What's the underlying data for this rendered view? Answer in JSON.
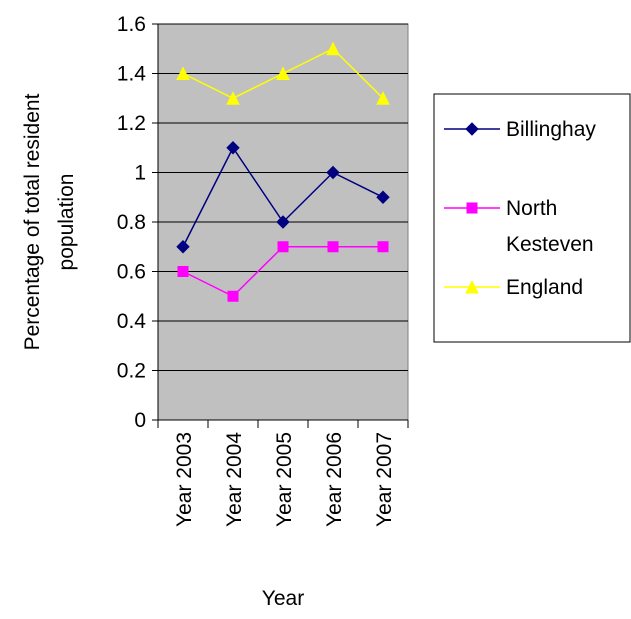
{
  "chart_data": {
    "type": "line",
    "title": "",
    "xlabel": "Year",
    "ylabel": "Percentage of total resident population",
    "ylabel_lines": [
      "Percentage of total resident",
      "population"
    ],
    "categories": [
      "Year 2003",
      "Year 2004",
      "Year 2005",
      "Year 2006",
      "Year 2007"
    ],
    "ylim": [
      0,
      1.6
    ],
    "yticks": [
      "0",
      "0.2",
      "0.4",
      "0.6",
      "0.8",
      "1",
      "1.2",
      "1.4",
      "1.6"
    ],
    "grid": true,
    "plot_background": "#c0c0c0",
    "legend_position": "right",
    "series": [
      {
        "name": "Billinghay",
        "legend_lines": [
          "Billinghay"
        ],
        "color": "#000080",
        "marker": "diamond",
        "values": [
          0.7,
          1.1,
          0.8,
          1.0,
          0.9
        ]
      },
      {
        "name": "North Kesteven",
        "legend_lines": [
          "North",
          "Kesteven"
        ],
        "color": "#ff00ff",
        "marker": "square",
        "values": [
          0.6,
          0.5,
          0.7,
          0.7,
          0.7
        ]
      },
      {
        "name": "England",
        "legend_lines": [
          "England"
        ],
        "color": "#ffff00",
        "marker": "triangle",
        "values": [
          1.4,
          1.3,
          1.4,
          1.5,
          1.3
        ]
      }
    ]
  }
}
